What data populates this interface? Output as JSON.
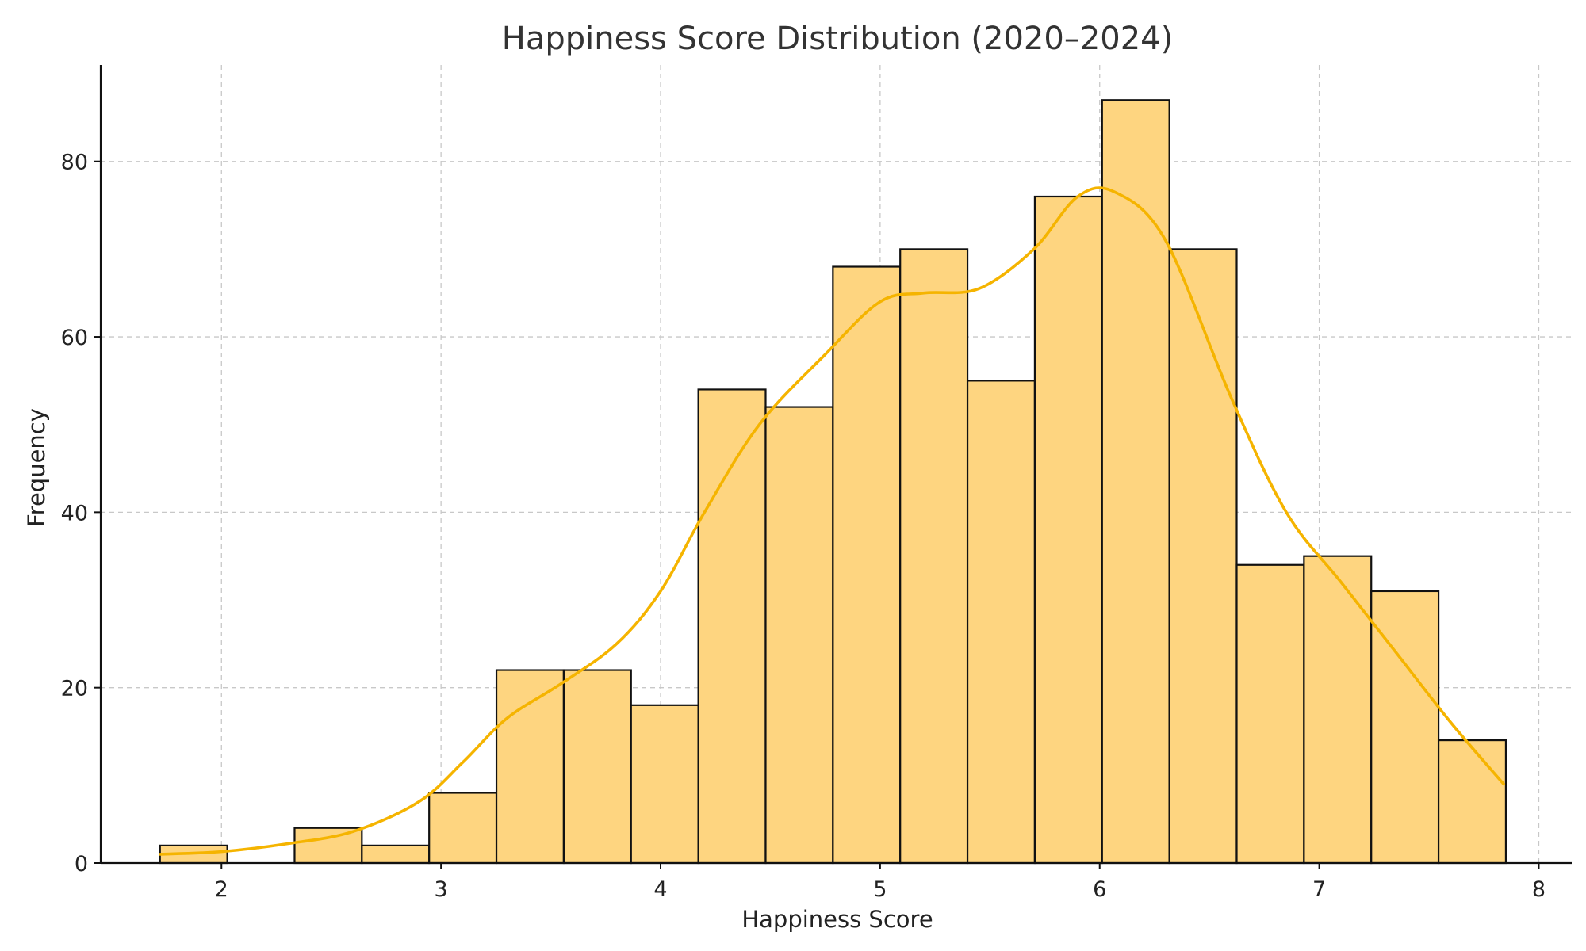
{
  "chart_data": {
    "type": "bar",
    "subtype": "histogram",
    "title": "Happiness Score Distribution (2020–2024)",
    "xlabel": "Happiness Score",
    "ylabel": "Frequency",
    "xlim": [
      1.45,
      8.15
    ],
    "ylim": [
      0,
      91
    ],
    "x_ticks": [
      2,
      3,
      4,
      5,
      6,
      7,
      8
    ],
    "y_ticks": [
      0,
      20,
      40,
      60,
      80
    ],
    "grid": true,
    "bins": {
      "start": 1.72,
      "width": 0.3065,
      "counts": [
        2,
        0,
        4,
        2,
        8,
        22,
        22,
        18,
        54,
        52,
        68,
        70,
        55,
        76,
        87,
        70,
        34,
        35,
        31,
        14
      ]
    },
    "kde_curve": {
      "x": [
        1.72,
        2.0,
        2.3,
        2.6,
        2.9,
        3.1,
        3.3,
        3.55,
        3.8,
        4.0,
        4.2,
        4.45,
        4.75,
        5.0,
        5.2,
        5.45,
        5.7,
        5.9,
        6.07,
        6.3,
        6.6,
        6.85,
        7.1,
        7.35,
        7.6,
        7.84
      ],
      "y": [
        1,
        1.3,
        2.2,
        3.6,
        7,
        11.5,
        16.5,
        20.5,
        25,
        31,
        40,
        50,
        58,
        64,
        65,
        65.5,
        70,
        76,
        76.5,
        71,
        53,
        40,
        32,
        24,
        16,
        9
      ]
    },
    "colors": {
      "bar_fill": "#FED580",
      "bar_edge": "#111111",
      "kde_line": "#F5B400"
    }
  }
}
